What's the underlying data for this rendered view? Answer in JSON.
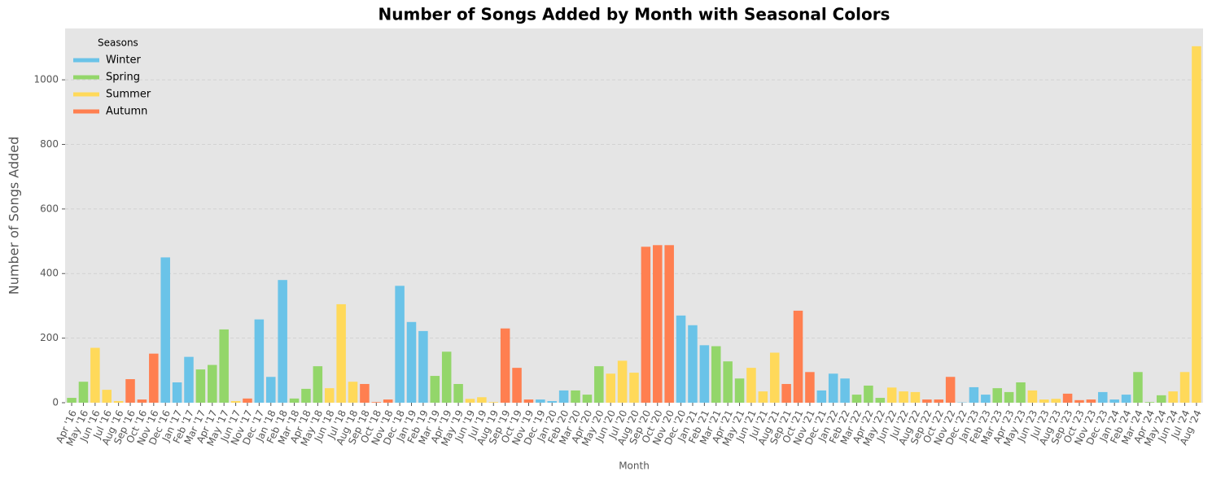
{
  "chart_data": {
    "type": "bar",
    "title": "Number of Songs Added by Month with Seasonal Colors",
    "xlabel": "Month",
    "ylabel": "Number of Songs Added",
    "categories": [
      "Apr '16",
      "May '16",
      "Jun '16",
      "Jul '16",
      "Aug '16",
      "Sep '16",
      "Oct '16",
      "Nov '16",
      "Dec '16",
      "Jan '17",
      "Feb '17",
      "Mar '17",
      "Apr '17",
      "May '17",
      "Jun '17",
      "Nov '17",
      "Dec '17",
      "Jan '18",
      "Feb '18",
      "Mar '18",
      "Apr '18",
      "May '18",
      "Jun '18",
      "Jul '18",
      "Aug '18",
      "Sep '18",
      "Oct '18",
      "Nov '18",
      "Dec '18",
      "Jan '19",
      "Feb '19",
      "Mar '19",
      "Apr '19",
      "May '19",
      "Jun '19",
      "Jul '19",
      "Aug '19",
      "Sep '19",
      "Oct '19",
      "Nov '19",
      "Dec '19",
      "Jan '20",
      "Feb '20",
      "Mar '20",
      "Apr '20",
      "May '20",
      "Jun '20",
      "Jul '20",
      "Aug '20",
      "Sep '20",
      "Oct '20",
      "Nov '20",
      "Dec '20",
      "Jan '21",
      "Feb '21",
      "Mar '21",
      "Apr '21",
      "May '21",
      "Jun '21",
      "Jul '21",
      "Aug '21",
      "Sep '21",
      "Oct '21",
      "Nov '21",
      "Dec '21",
      "Jan '22",
      "Feb '22",
      "Mar '22",
      "Apr '22",
      "May '22",
      "Jun '22",
      "Jul '22",
      "Aug '22",
      "Sep '22",
      "Oct '22",
      "Nov '22",
      "Dec '22",
      "Jan '23",
      "Feb '23",
      "Mar '23",
      "Apr '23",
      "May '23",
      "Jun '23",
      "Jul '23",
      "Aug '23",
      "Sep '23",
      "Oct '23",
      "Nov '23",
      "Dec '23",
      "Jan '24",
      "Feb '24",
      "Mar '24",
      "Apr '24",
      "May '24",
      "Jun '24",
      "Jul '24",
      "Aug '24"
    ],
    "values": [
      15,
      65,
      170,
      40,
      5,
      73,
      10,
      152,
      450,
      63,
      142,
      103,
      117,
      227,
      5,
      13,
      258,
      80,
      380,
      13,
      43,
      113,
      45,
      305,
      65,
      58,
      2,
      10,
      362,
      250,
      222,
      83,
      158,
      58,
      12,
      17,
      2,
      230,
      108,
      10,
      10,
      5,
      38,
      38,
      25,
      113,
      90,
      130,
      93,
      483,
      488,
      488,
      270,
      240,
      178,
      175,
      128,
      75,
      108,
      35,
      155,
      58,
      285,
      95,
      38,
      90,
      75,
      25,
      53,
      15,
      47,
      35,
      33,
      10,
      10,
      80,
      1,
      48,
      25,
      45,
      33,
      63,
      38,
      10,
      12,
      28,
      8,
      10,
      33,
      10,
      25,
      95,
      2,
      23,
      35,
      95,
      1104
    ],
    "colors": [
      "#93d66a",
      "#93d66a",
      "#ffd95a",
      "#ffd95a",
      "#ffd95a",
      "#ff7f50",
      "#ff7f50",
      "#ff7f50",
      "#6ac3e8",
      "#6ac3e8",
      "#6ac3e8",
      "#93d66a",
      "#93d66a",
      "#93d66a",
      "#ffd95a",
      "#ff7f50",
      "#6ac3e8",
      "#6ac3e8",
      "#6ac3e8",
      "#93d66a",
      "#93d66a",
      "#93d66a",
      "#ffd95a",
      "#ffd95a",
      "#ffd95a",
      "#ff7f50",
      "#ff7f50",
      "#ff7f50",
      "#6ac3e8",
      "#6ac3e8",
      "#6ac3e8",
      "#93d66a",
      "#93d66a",
      "#93d66a",
      "#ffd95a",
      "#ffd95a",
      "#ffd95a",
      "#ff7f50",
      "#ff7f50",
      "#ff7f50",
      "#6ac3e8",
      "#6ac3e8",
      "#6ac3e8",
      "#93d66a",
      "#93d66a",
      "#93d66a",
      "#ffd95a",
      "#ffd95a",
      "#ffd95a",
      "#ff7f50",
      "#ff7f50",
      "#ff7f50",
      "#6ac3e8",
      "#6ac3e8",
      "#6ac3e8",
      "#93d66a",
      "#93d66a",
      "#93d66a",
      "#ffd95a",
      "#ffd95a",
      "#ffd95a",
      "#ff7f50",
      "#ff7f50",
      "#ff7f50",
      "#6ac3e8",
      "#6ac3e8",
      "#6ac3e8",
      "#93d66a",
      "#93d66a",
      "#93d66a",
      "#ffd95a",
      "#ffd95a",
      "#ffd95a",
      "#ff7f50",
      "#ff7f50",
      "#ff7f50",
      "#6ac3e8",
      "#6ac3e8",
      "#6ac3e8",
      "#93d66a",
      "#93d66a",
      "#93d66a",
      "#ffd95a",
      "#ffd95a",
      "#ffd95a",
      "#ff7f50",
      "#ff7f50",
      "#ff7f50",
      "#6ac3e8",
      "#6ac3e8",
      "#6ac3e8",
      "#93d66a",
      "#93d66a",
      "#93d66a",
      "#ffd95a",
      "#ffd95a",
      "#ffd95a"
    ],
    "legend": {
      "title": "Seasons",
      "position": "upper left",
      "entries": [
        {
          "name": "Winter",
          "color": "#6ac3e8"
        },
        {
          "name": "Spring",
          "color": "#93d66a"
        },
        {
          "name": "Summer",
          "color": "#ffd95a"
        },
        {
          "name": "Autumn",
          "color": "#ff7f50"
        }
      ]
    },
    "ylim": [
      0,
      1159
    ],
    "yticks": [
      0,
      200,
      400,
      600,
      800,
      1000
    ],
    "grid": true
  }
}
